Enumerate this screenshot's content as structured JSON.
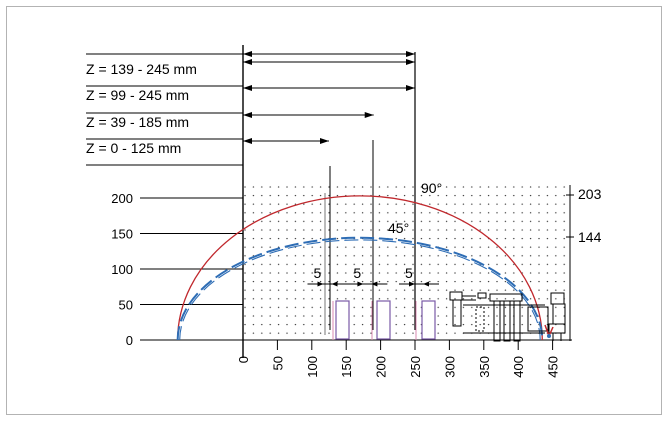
{
  "z_ranges": [
    {
      "label": "Z = 139 - 245 mm",
      "reach_x": 250
    },
    {
      "label": "Z =   99 - 245 mm",
      "reach_x": 250
    },
    {
      "label": "Z =   39 - 185 mm",
      "reach_x": 190
    },
    {
      "label": "Z =     0 - 125 mm",
      "reach_x": 125
    }
  ],
  "y_axis": {
    "ticks": [
      {
        "value": 0,
        "label": "0"
      },
      {
        "value": 50,
        "label": "50"
      },
      {
        "value": 100,
        "label": "100"
      },
      {
        "value": 150,
        "label": "150"
      },
      {
        "value": 200,
        "label": "200"
      }
    ]
  },
  "x_axis": {
    "ticks": [
      {
        "value": 0,
        "label": "0"
      },
      {
        "value": 50,
        "label": "50"
      },
      {
        "value": 100,
        "label": "100"
      },
      {
        "value": 150,
        "label": "150"
      },
      {
        "value": 200,
        "label": "200"
      },
      {
        "value": 250,
        "label": "250"
      },
      {
        "value": 300,
        "label": "300"
      },
      {
        "value": 350,
        "label": "350"
      },
      {
        "value": 400,
        "label": "400"
      },
      {
        "value": 450,
        "label": "450"
      }
    ]
  },
  "arcs": [
    {
      "angle_label": "90°",
      "right_label": "203",
      "height": 203,
      "color": "#c0282d"
    },
    {
      "angle_label": "45°",
      "right_label": "144",
      "height": 144,
      "color": "#2e6db5"
    }
  ],
  "gap_labels": [
    {
      "text": "5",
      "x": 117
    },
    {
      "text": "5",
      "x": 175
    },
    {
      "text": "5",
      "x": 250
    }
  ],
  "colors": {
    "red_arc": "#c0282d",
    "blue_arc": "#2e6db5",
    "blocks": "#7a5aa6",
    "pins": "#d98ab0"
  }
}
